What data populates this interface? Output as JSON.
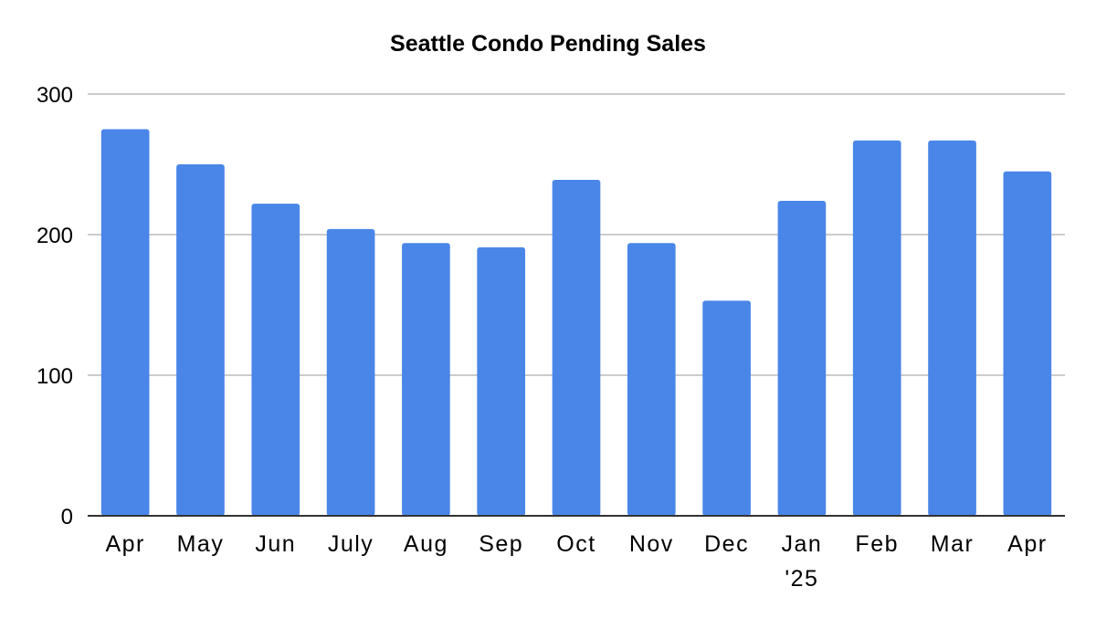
{
  "chart_data": {
    "type": "bar",
    "title": "Seattle Condo Pending Sales",
    "xlabel": "",
    "ylabel": "",
    "categories": [
      "Apr",
      "May",
      "Jun",
      "July",
      "Aug",
      "Sep",
      "Oct",
      "Nov",
      "Dec",
      "Jan '25",
      "Feb",
      "Mar",
      "Apr"
    ],
    "category_lines": [
      [
        "Apr"
      ],
      [
        "May"
      ],
      [
        "Jun"
      ],
      [
        "July"
      ],
      [
        "Aug"
      ],
      [
        "Sep"
      ],
      [
        "Oct"
      ],
      [
        "Nov"
      ],
      [
        "Dec"
      ],
      [
        "Jan",
        "'25"
      ],
      [
        "Feb"
      ],
      [
        "Mar"
      ],
      [
        "Apr"
      ]
    ],
    "values": [
      275,
      250,
      222,
      204,
      194,
      191,
      239,
      194,
      153,
      224,
      267,
      267,
      245
    ],
    "ylim": [
      0,
      300
    ],
    "yticks": [
      0,
      100,
      200,
      300
    ],
    "grid": true,
    "legend": "none",
    "colors": {
      "bar": "#4a86e8",
      "grid": "#cccccc",
      "axis": "#333333"
    }
  }
}
